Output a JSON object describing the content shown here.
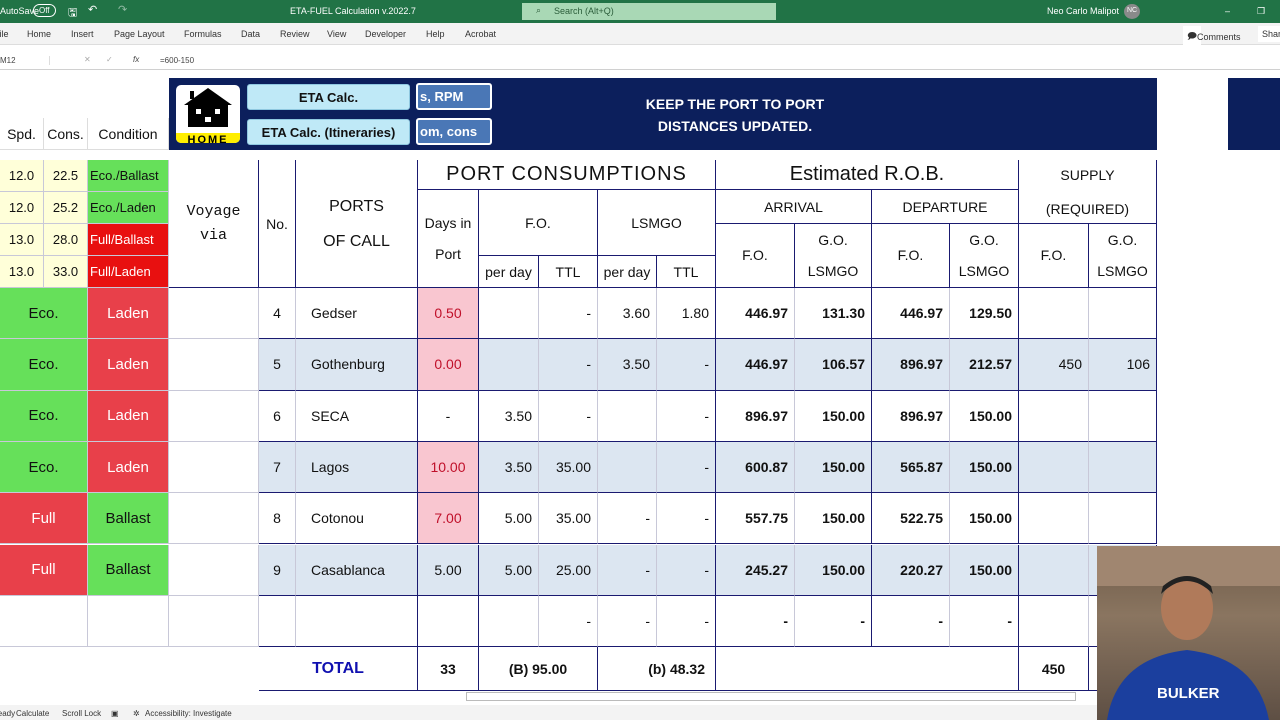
{
  "titlebar": {
    "autosave": "AutoSave",
    "toggle": "Off",
    "doc_title": "ETA-FUEL Calculation v.2022.7",
    "search_placeholder": "Search (Alt+Q)",
    "user": "Neo Carlo Malipot",
    "initials": "NC"
  },
  "ribbon": {
    "tabs": [
      "File",
      "Home",
      "Insert",
      "Page Layout",
      "Formulas",
      "Data",
      "Review",
      "View",
      "Developer",
      "Help",
      "Acrobat"
    ],
    "comments": "Comments",
    "share": "Share"
  },
  "formula_bar": {
    "name_box": "M12",
    "formula": "=600-150"
  },
  "banner": {
    "home_label": "HOME",
    "btn_eta": "ETA Calc.",
    "btn_itin": "ETA Calc. (Itineraries)",
    "btn_rpm": "s, RPM",
    "btn_cons": "om, cons",
    "notice_line1": "KEEP THE PORT TO PORT",
    "notice_line2": "DISTANCES UPDATED."
  },
  "speed_table": {
    "headers": [
      "Spd.",
      "Cons.",
      "Condition"
    ],
    "rows": [
      [
        "12.0",
        "22.5",
        "Eco./Ballast",
        "#66e05a",
        "#111"
      ],
      [
        "12.0",
        "25.2",
        "Eco./Laden",
        "#66e05a",
        "#111"
      ],
      [
        "13.0",
        "28.0",
        "Full/Ballast",
        "#e81010",
        "#fff"
      ],
      [
        "13.0",
        "33.0",
        "Full/Laden",
        "#e81010",
        "#fff"
      ]
    ]
  },
  "headers": {
    "voyage": "Voyage via",
    "no": "No.",
    "ports": "PORTS OF CALL",
    "port_cons": "PORT CONSUMPTIONS",
    "days": "Days in Port",
    "fo": "F.O.",
    "lsmgo": "LSMGO",
    "per_day": "per day",
    "ttl": "TTL",
    "rob": "Estimated R.O.B.",
    "arrival": "ARRIVAL",
    "departure": "DEPARTURE",
    "supply": "SUPPLY (REQUIRED)",
    "go_lsmgo": "G.O. LSMGO"
  },
  "rows": [
    {
      "mode": "Eco.",
      "cond": "Laden",
      "no": "4",
      "port": "Gedser",
      "days": "0.50",
      "fo_day": "",
      "fo_ttl": "-",
      "ls_day": "3.60",
      "ls_ttl": "1.80",
      "arr_fo": "446.97",
      "arr_go": "131.30",
      "dep_fo": "446.97",
      "dep_go": "129.50",
      "sup_fo": "",
      "sup_go": "",
      "pink": true
    },
    {
      "mode": "Eco.",
      "cond": "Laden",
      "no": "5",
      "port": "Gothenburg",
      "days": "0.00",
      "fo_day": "",
      "fo_ttl": "-",
      "ls_day": "3.50",
      "ls_ttl": "-",
      "arr_fo": "446.97",
      "arr_go": "106.57",
      "dep_fo": "896.97",
      "dep_go": "212.57",
      "sup_fo": "450",
      "sup_go": "106",
      "pink": true
    },
    {
      "mode": "Eco.",
      "cond": "Laden",
      "no": "6",
      "port": "SECA",
      "days": "-",
      "fo_day": "3.50",
      "fo_ttl": "-",
      "ls_day": "",
      "ls_ttl": "-",
      "arr_fo": "896.97",
      "arr_go": "150.00",
      "dep_fo": "896.97",
      "dep_go": "150.00",
      "sup_fo": "",
      "sup_go": "",
      "pink": false
    },
    {
      "mode": "Eco.",
      "cond": "Laden",
      "no": "7",
      "port": "Lagos",
      "days": "10.00",
      "fo_day": "3.50",
      "fo_ttl": "35.00",
      "ls_day": "",
      "ls_ttl": "-",
      "arr_fo": "600.87",
      "arr_go": "150.00",
      "dep_fo": "565.87",
      "dep_go": "150.00",
      "sup_fo": "",
      "sup_go": "",
      "pink": true
    },
    {
      "mode": "Full",
      "cond": "Ballast",
      "no": "8",
      "port": "Cotonou",
      "days": "7.00",
      "fo_day": "5.00",
      "fo_ttl": "35.00",
      "ls_day": "-",
      "ls_ttl": "-",
      "arr_fo": "557.75",
      "arr_go": "150.00",
      "dep_fo": "522.75",
      "dep_go": "150.00",
      "sup_fo": "",
      "sup_go": "",
      "pink": true
    },
    {
      "mode": "Full",
      "cond": "Ballast",
      "no": "9",
      "port": "Casablanca",
      "days": "5.00",
      "fo_day": "5.00",
      "fo_ttl": "25.00",
      "ls_day": "-",
      "ls_ttl": "-",
      "arr_fo": "245.27",
      "arr_go": "150.00",
      "dep_fo": "220.27",
      "dep_go": "150.00",
      "sup_fo": "",
      "sup_go": "",
      "pink": false
    },
    {
      "mode": "",
      "cond": "",
      "no": "",
      "port": "",
      "days": "",
      "fo_day": "",
      "fo_ttl": "-",
      "ls_day": "-",
      "ls_ttl": "-",
      "arr_fo": "-",
      "arr_go": "-",
      "dep_fo": "-",
      "dep_go": "-",
      "sup_fo": "",
      "sup_go": "",
      "pink": false
    }
  ],
  "totals": {
    "label": "TOTAL",
    "days": "33",
    "fo": "(B) 95.00",
    "ls": "(b) 48.32",
    "supply_fo": "450"
  },
  "status": {
    "items": [
      "Ready",
      "Calculate",
      "Scroll Lock",
      "Accessibility: Investigate"
    ]
  },
  "colors": {
    "green": "#66e05a",
    "red": "#e8404a",
    "navy": "#0c1f5c",
    "excel_green": "#217346",
    "row_alt": "#dce6f1",
    "pink": "#f9c6d0"
  }
}
